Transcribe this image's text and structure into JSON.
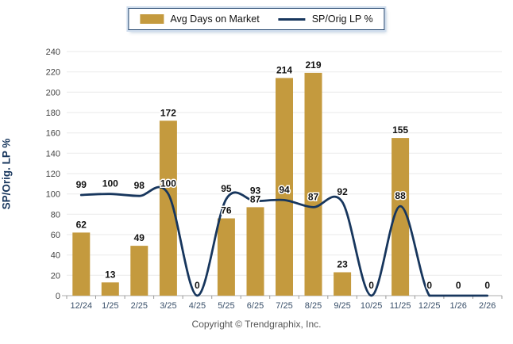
{
  "legend": {
    "bar_label": "Avg Days on Market",
    "line_label": "SP/Orig LP %"
  },
  "axis": {
    "y_title": "SP/Orig. LP %"
  },
  "footer": {
    "copyright": "Copyright © Trendgraphix, Inc."
  },
  "colors": {
    "bar": "#C49A3E",
    "line": "#17365D",
    "grid": "#EAEAEA",
    "axis_line": "#ADADAD",
    "tick_mark": "#999999",
    "y_tick_label": "#444444",
    "x_tick_label": "#3A506A",
    "value_label": "#111111",
    "y_title": "#17365D",
    "legend_text": "#111111"
  },
  "chart_data": {
    "type": "combo",
    "categories": [
      "12/24",
      "1/25",
      "2/25",
      "3/25",
      "4/25",
      "5/25",
      "6/25",
      "7/25",
      "8/25",
      "9/25",
      "10/25",
      "11/25",
      "12/25",
      "1/26",
      "2/26"
    ],
    "series": [
      {
        "name": "Avg Days on Market",
        "type": "bar",
        "values": [
          62,
          13,
          49,
          172,
          0,
          76,
          87,
          214,
          219,
          23,
          0,
          155,
          0,
          0,
          0
        ]
      },
      {
        "name": "SP/Orig LP %",
        "type": "line",
        "values": [
          99,
          100,
          98,
          100,
          0,
          95,
          93,
          94,
          87,
          92,
          0,
          88,
          0,
          0,
          0
        ]
      }
    ],
    "title": "",
    "xlabel": "",
    "ylabel": "SP/Orig. LP %",
    "ylim": [
      0,
      240
    ],
    "ytick_step": 20,
    "grid": true,
    "legend_position": "top",
    "data_labels": true
  }
}
